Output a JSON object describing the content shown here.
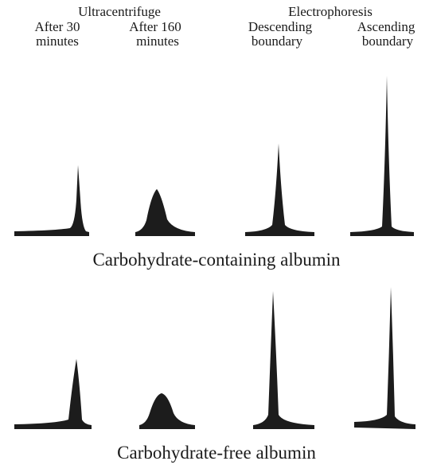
{
  "header": {
    "groups": [
      "Ultracentrifuge",
      "Electrophoresis"
    ],
    "columns": [
      {
        "line1": "After 30",
        "line2": "minutes"
      },
      {
        "line1": "After 160",
        "line2": "minutes"
      },
      {
        "line1": "Descending",
        "line2": "boundary"
      },
      {
        "line1": "Ascending",
        "line2": "boundary"
      }
    ]
  },
  "rows": [
    {
      "label": "Carbohydrate-containing albumin"
    },
    {
      "label": "Carbohydrate-free albumin"
    }
  ]
}
